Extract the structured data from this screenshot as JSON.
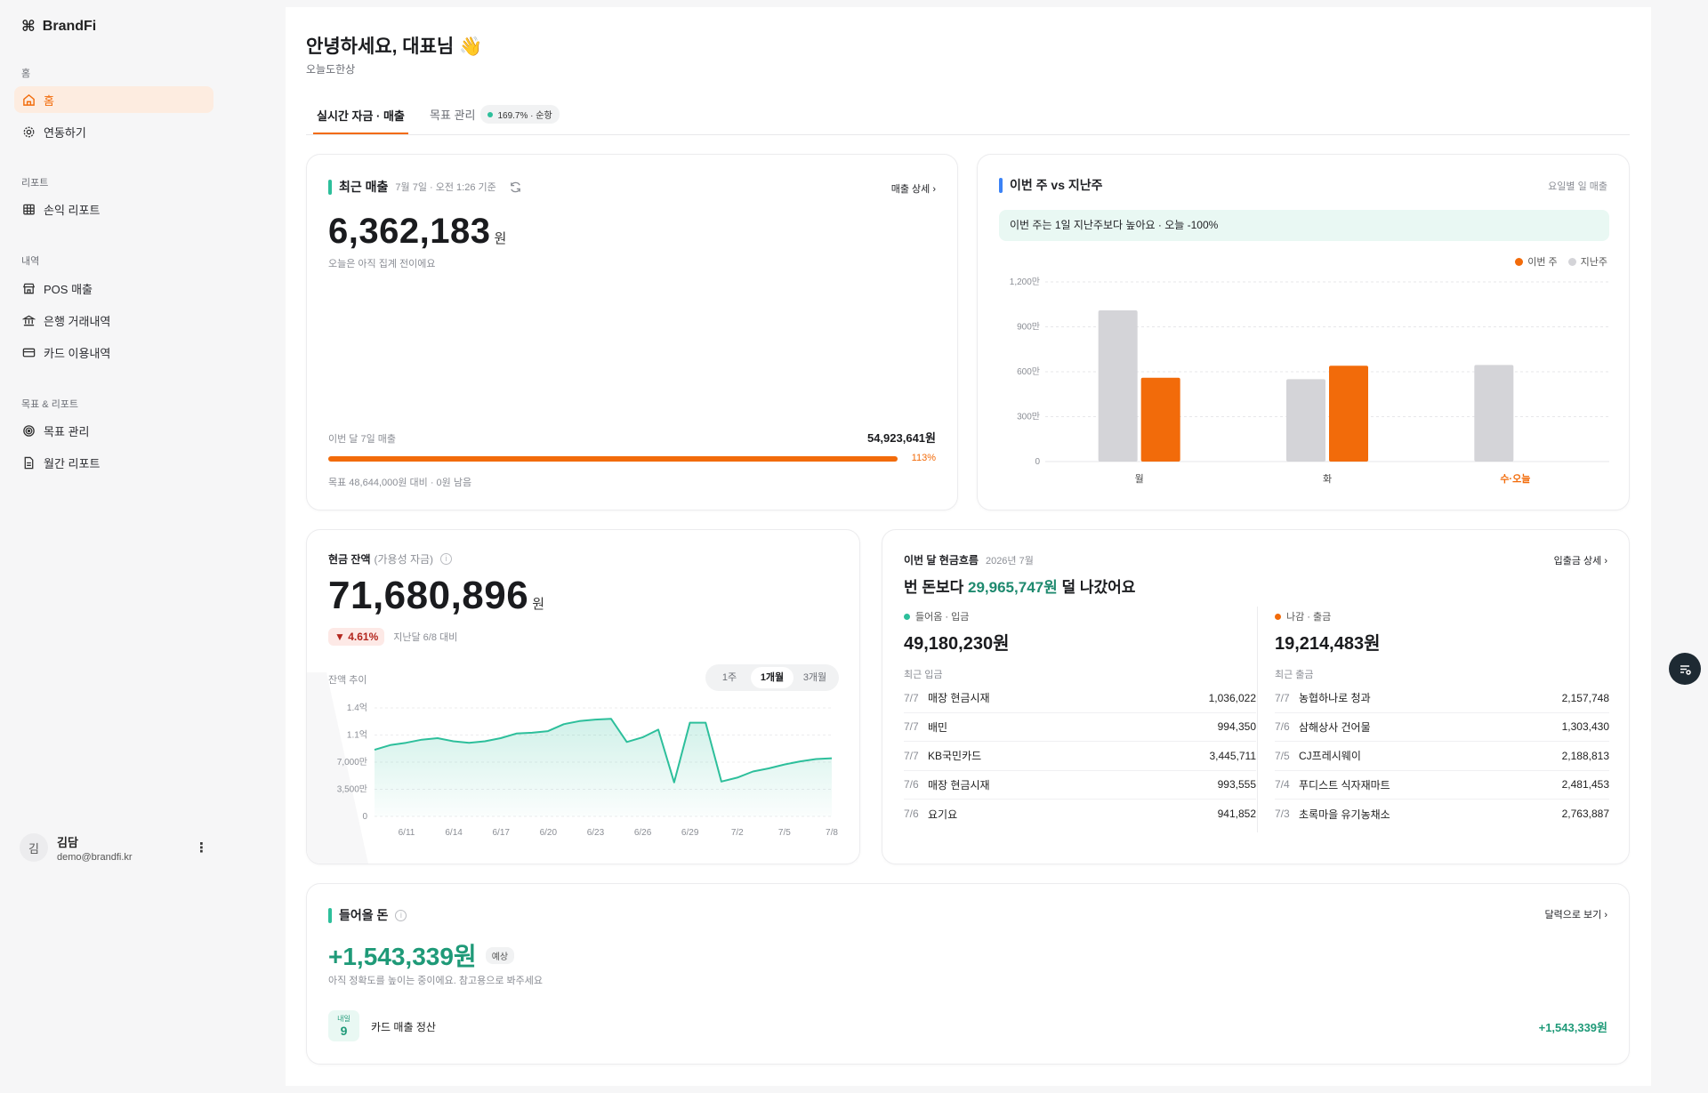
{
  "app": {
    "name": "BrandFi"
  },
  "sidebar": {
    "sections": [
      "홈",
      "리포트",
      "내역",
      "목표 & 리포트"
    ],
    "items": [
      {
        "label": "홈",
        "icon": "home-icon",
        "active": true
      },
      {
        "label": "연동하기",
        "icon": "gear-icon"
      },
      {
        "label": "손익 리포트",
        "icon": "table-icon"
      },
      {
        "label": "POS 매출",
        "icon": "store-icon"
      },
      {
        "label": "은행 거래내역",
        "icon": "bank-icon"
      },
      {
        "label": "카드 이용내역",
        "icon": "card-icon"
      },
      {
        "label": "목표 관리",
        "icon": "target-icon"
      },
      {
        "label": "월간 리포트",
        "icon": "report-icon"
      }
    ],
    "user": {
      "initial": "김",
      "name": "김담",
      "email": "demo@brandfi.kr"
    }
  },
  "header": {
    "greeting": "안녕하세요, 대표님 👋",
    "subtitle": "오늘도한상"
  },
  "tabs": [
    {
      "label": "실시간 자금 · 매출",
      "active": true
    },
    {
      "label": "목표 관리",
      "badge": "169.7% · 순항"
    }
  ],
  "recent_sales": {
    "title": "최근 매출",
    "meta": "7월 7일 · 오전 1:26 기준",
    "link": "매출 상세 ›",
    "amount": "6,362,183",
    "unit": "원",
    "note": "오늘은 아직 집계 전이에요",
    "progress_label": "이번 달 7일 매출",
    "progress_value": "54,923,641원",
    "progress_pct_label": "113%",
    "progress_fraction": 1.0,
    "goal_note": "목표 48,644,000원 대비 · 0원 남음"
  },
  "weekly": {
    "title": "이번 주 vs 지난주",
    "meta": "요일별 일 매출",
    "banner": "이번 주는 1일 지난주보다 높아요 · 오늘 -100%",
    "legend": [
      "이번 주",
      "지난주"
    ]
  },
  "balance": {
    "title": "현금 잔액",
    "title_sub": "(가용성 자금)",
    "amount": "71,680,896",
    "unit": "원",
    "change": "▼ 4.61%",
    "change_note": "지난달 6/8 대비",
    "trend_label": "잔액 추이",
    "ranges": [
      "1주",
      "1개월",
      "3개월"
    ],
    "active_range": "1개월"
  },
  "cashflow": {
    "title": "이번 달 현금흐름",
    "year": "2026년 7월",
    "link": "입출금 상세 ›",
    "headline_pre": "번 돈보다 ",
    "headline_amt": "29,965,747원",
    "headline_post": " 덜 나갔어요",
    "in_label": "들어옴 · 입금",
    "in_amount": "49,180,230원",
    "in_list_label": "최근 입금",
    "out_label": "나감 · 출금",
    "out_amount": "19,214,483원",
    "out_list_label": "최근 출금",
    "in_rows": [
      {
        "d": "7/7",
        "n": "매장 현금시재",
        "v": "1,036,022"
      },
      {
        "d": "7/7",
        "n": "배민",
        "v": "994,350"
      },
      {
        "d": "7/7",
        "n": "KB국민카드",
        "v": "3,445,711"
      },
      {
        "d": "7/6",
        "n": "매장 현금시재",
        "v": "993,555"
      },
      {
        "d": "7/6",
        "n": "요기요",
        "v": "941,852"
      }
    ],
    "out_rows": [
      {
        "d": "7/7",
        "n": "농협하나로 청과",
        "v": "2,157,748"
      },
      {
        "d": "7/6",
        "n": "삼해상사 건어물",
        "v": "1,303,430"
      },
      {
        "d": "7/5",
        "n": "CJ프레시웨이",
        "v": "2,188,813"
      },
      {
        "d": "7/4",
        "n": "푸디스트 식자재마트",
        "v": "2,481,453"
      },
      {
        "d": "7/3",
        "n": "초록마을 유기농채소",
        "v": "2,763,887"
      }
    ]
  },
  "incoming": {
    "title": "들어올 돈",
    "link": "달력으로 보기 ›",
    "amount": "+1,543,339원",
    "tag": "예상",
    "note": "아직 정확도를 높이는 중이에요. 참고용으로 봐주세요",
    "item": {
      "day_label": "내일",
      "day": "9",
      "name": "카드 매출 정산",
      "value": "+1,543,339원"
    }
  },
  "colors": {
    "accent": "#f26b0a",
    "green": "#2dbf9b",
    "blue": "#3b82f6",
    "grey": "#d4d4d8"
  },
  "chart_data": [
    {
      "type": "bar",
      "title": "이번 주 vs 지난주",
      "categories": [
        "월",
        "화",
        "수·오늘"
      ],
      "series": [
        {
          "name": "지난주",
          "values": [
            1010,
            550,
            645
          ]
        },
        {
          "name": "이번 주",
          "values": [
            560,
            640,
            0
          ]
        }
      ],
      "ylim": [
        0,
        1200
      ],
      "yticks": [
        "0",
        "300만",
        "600만",
        "900만",
        "1,200만"
      ],
      "ytick_values": [
        0,
        300,
        600,
        900,
        1200
      ]
    },
    {
      "type": "area",
      "title": "잔액 추이",
      "xticks": [
        "6/11",
        "6/14",
        "6/17",
        "6/20",
        "6/23",
        "6/26",
        "6/29",
        "7/2",
        "7/5",
        "7/8"
      ],
      "yticks": [
        "0",
        "3,500만",
        "7,000만",
        "1.1억",
        "1.4억"
      ],
      "ytick_values": [
        0,
        3500,
        7000,
        10500,
        14000
      ],
      "ylim": [
        0,
        14000
      ],
      "x": [
        0,
        1,
        2,
        3,
        4,
        5,
        6,
        7,
        8,
        9,
        10,
        11,
        12,
        13,
        14,
        15,
        16,
        17,
        18,
        19,
        20,
        21,
        22,
        23,
        24,
        25,
        26,
        27,
        28,
        29
      ],
      "values": [
        8600,
        9200,
        9500,
        9900,
        10100,
        9700,
        9500,
        9700,
        10100,
        10700,
        10800,
        11000,
        11900,
        12300,
        12500,
        12600,
        9600,
        10200,
        11200,
        4400,
        12100,
        12100,
        4500,
        5000,
        5800,
        6200,
        6700,
        7100,
        7400,
        7500
      ]
    }
  ]
}
